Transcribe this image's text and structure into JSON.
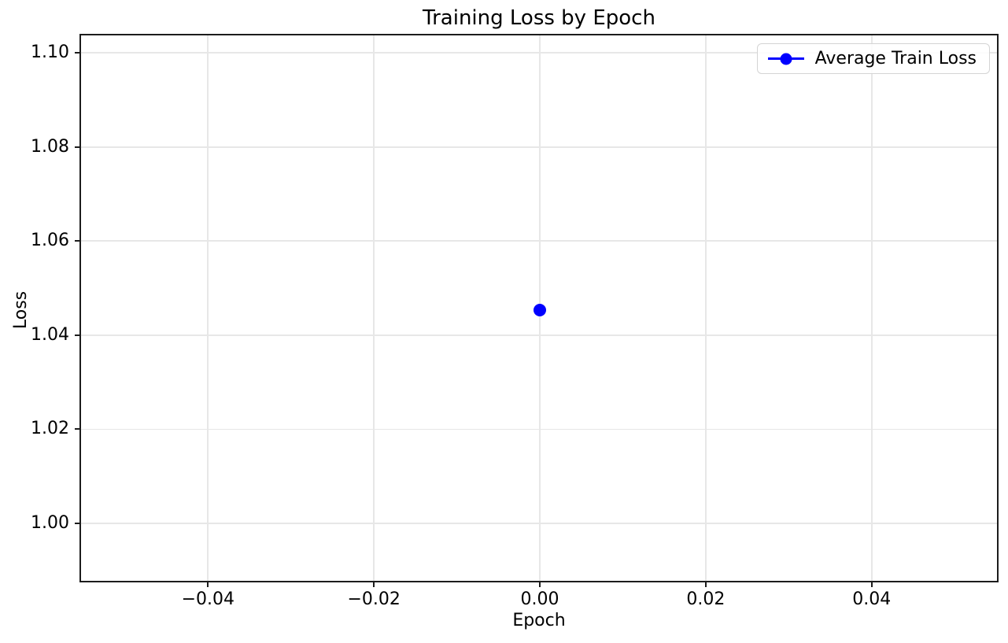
{
  "chart_data": {
    "type": "line",
    "title": "Training Loss by Epoch",
    "xlabel": "Epoch",
    "ylabel": "Loss",
    "xlim": [
      -0.0553,
      0.0551
    ],
    "ylim": [
      0.9878,
      1.1037
    ],
    "xticks": [
      -0.04,
      -0.02,
      0,
      0.02,
      0.04
    ],
    "yticks": [
      1.0,
      1.02,
      1.04,
      1.06,
      1.08,
      1.1
    ],
    "tick_decimals": 2,
    "grid": true,
    "legend_position": "upper right",
    "series": [
      {
        "name": "Average Train Loss",
        "color": "#0000ff",
        "marker": "circle",
        "x": [
          0
        ],
        "y": [
          1.0454
        ]
      }
    ]
  },
  "style": {
    "background": "#ffffff",
    "text_color": "#000000",
    "spine_color": "#1c1c1c",
    "grid_color": "#e7e7e7",
    "legend_border": "#d4d4d4",
    "series_blue": "#0000ff"
  }
}
